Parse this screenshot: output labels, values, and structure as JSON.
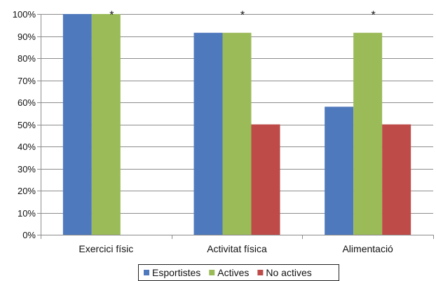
{
  "chart_data": {
    "type": "bar",
    "categories": [
      "Exercici físic",
      "Activitat física",
      "Alimentació"
    ],
    "series": [
      {
        "name": "Esportistes",
        "color": "#4F79BD",
        "values": [
          100,
          91.5,
          58
        ]
      },
      {
        "name": "Actives",
        "color": "#9BBB59",
        "values": [
          100,
          91.5,
          91.5
        ]
      },
      {
        "name": "No actives",
        "color": "#BE4B48",
        "values": [
          0,
          50,
          50
        ]
      }
    ],
    "ylim": [
      0,
      100
    ],
    "yticks": [
      "0%",
      "10%",
      "20%",
      "30%",
      "40%",
      "50%",
      "60%",
      "70%",
      "80%",
      "90%",
      "100%"
    ],
    "grid": true,
    "legend_position": "bottom",
    "significance_marker": "*"
  }
}
